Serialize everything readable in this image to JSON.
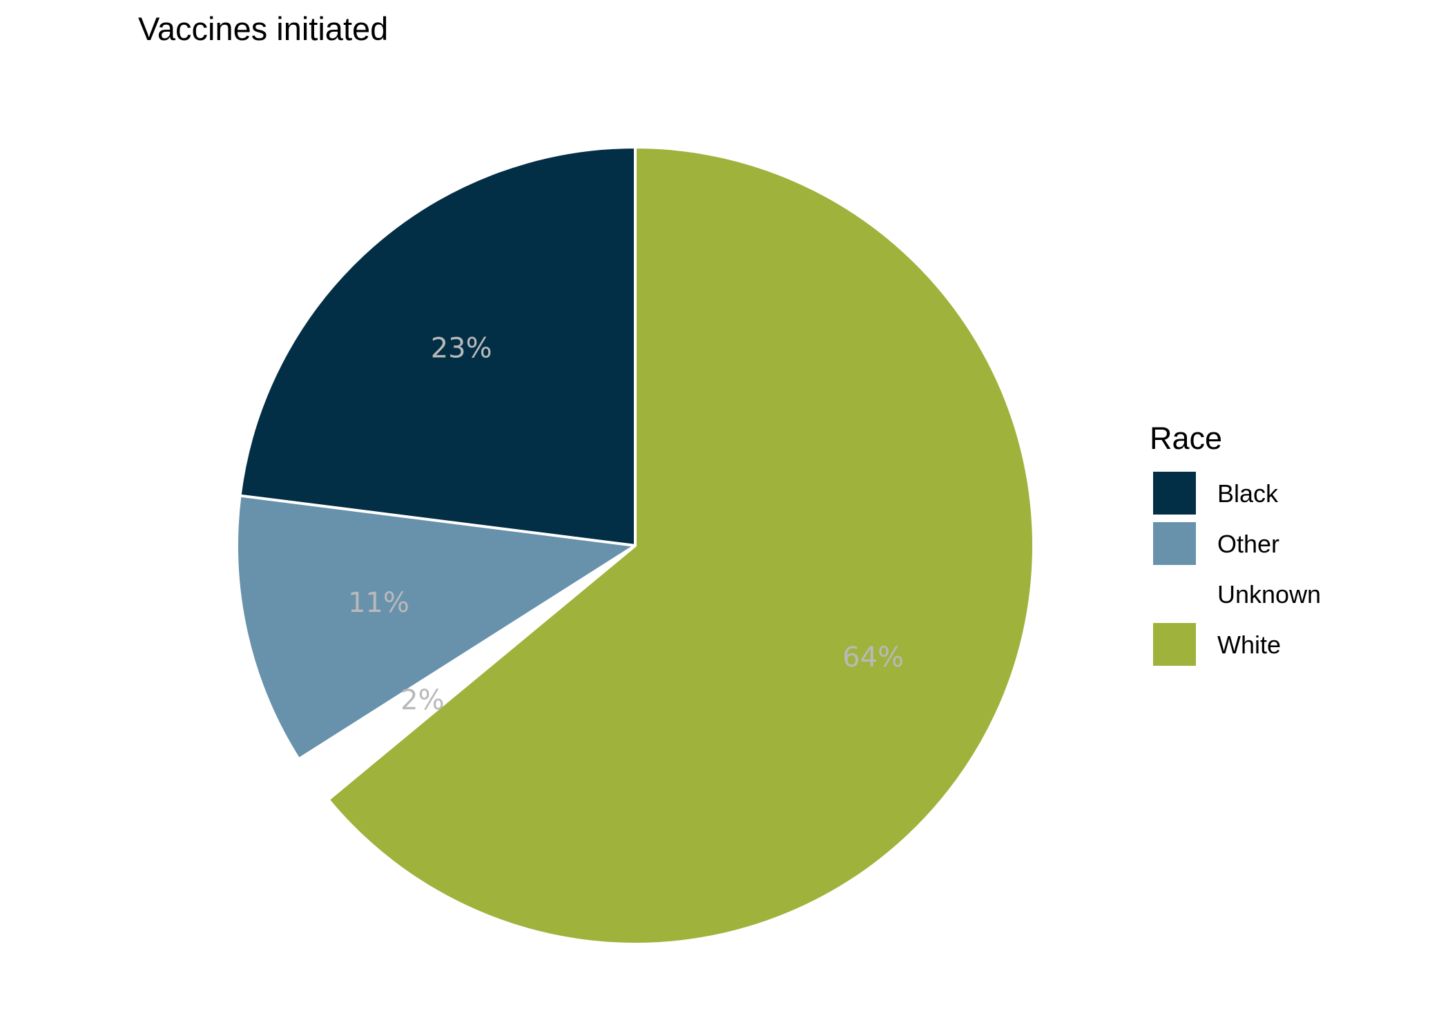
{
  "chart_data": {
    "type": "pie",
    "title": "Vaccines initiated",
    "legend_title": "Race",
    "legend_position": "right",
    "start_angle_deg": 0,
    "direction": "counterclockwise",
    "slices": [
      {
        "name": "Black",
        "value": 23,
        "label": "23%",
        "color": "#022f46"
      },
      {
        "name": "Other",
        "value": 11,
        "label": "11%",
        "color": "#6891ac"
      },
      {
        "name": "Unknown",
        "value": 2,
        "label": "2%",
        "color": "#ffffff"
      },
      {
        "name": "White",
        "value": 64,
        "label": "64%",
        "color": "#9fb23b"
      }
    ]
  }
}
